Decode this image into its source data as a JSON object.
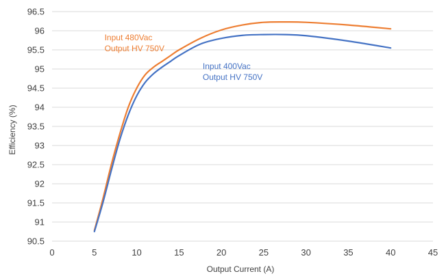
{
  "chart_data": {
    "type": "line",
    "xlabel": "Output Current (A)",
    "ylabel": "Efficiency (%)",
    "xlim": [
      0,
      45
    ],
    "ylim": [
      90.5,
      96.5
    ],
    "xticks": [
      0,
      5,
      10,
      15,
      20,
      25,
      30,
      35,
      40,
      45
    ],
    "yticks": [
      90.5,
      91,
      91.5,
      92,
      92.5,
      93,
      93.5,
      94,
      94.5,
      95,
      95.5,
      96,
      96.5
    ],
    "grid": "horizontal",
    "series": [
      {
        "name": "Input 480Vac\nOutput HV 750V",
        "color": "#ED7D31",
        "x": [
          5,
          6,
          7,
          8,
          9,
          10,
          11,
          12,
          13,
          14,
          15,
          17.5,
          20,
          22.5,
          25,
          27.5,
          30,
          35,
          40
        ],
        "y": [
          90.78,
          91.6,
          92.5,
          93.3,
          94.0,
          94.5,
          94.85,
          95.05,
          95.2,
          95.35,
          95.5,
          95.8,
          96.02,
          96.15,
          96.22,
          96.23,
          96.22,
          96.15,
          96.05
        ]
      },
      {
        "name": "Input 400Vac\nOutput HV 750V",
        "color": "#4472C4",
        "x": [
          5,
          6,
          7,
          8,
          9,
          10,
          11,
          12,
          13,
          14,
          15,
          17.5,
          20,
          22.5,
          25,
          27.5,
          30,
          35,
          40
        ],
        "y": [
          90.75,
          91.5,
          92.35,
          93.15,
          93.8,
          94.3,
          94.65,
          94.88,
          95.05,
          95.2,
          95.35,
          95.65,
          95.8,
          95.88,
          95.9,
          95.9,
          95.87,
          95.73,
          95.55
        ]
      }
    ],
    "annotations": [
      {
        "lines": [
          "Input 480Vac",
          "Output HV 750V"
        ],
        "color": "#ED7D31",
        "x": 6.2,
        "y": 95.75
      },
      {
        "lines": [
          "Input 400Vac",
          "Output HV 750V"
        ],
        "color": "#4472C4",
        "x": 17.8,
        "y": 95.0
      }
    ]
  }
}
